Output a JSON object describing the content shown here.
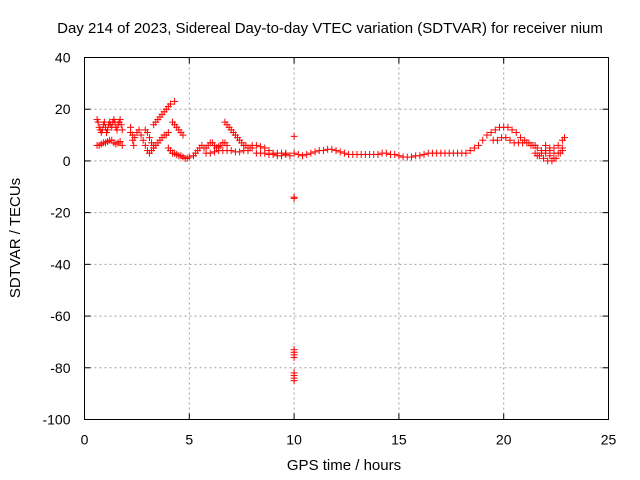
{
  "chart_data": {
    "type": "scatter",
    "title": "Day 214 of 2023, Sidereal Day-to-day VTEC variation (SDTVAR) for receiver nium",
    "xlabel": "GPS time / hours",
    "ylabel": "SDTVAR / TECUs",
    "xlim": [
      0,
      25
    ],
    "ylim": [
      -100,
      40
    ],
    "xticks": [
      0,
      5,
      10,
      15,
      20,
      25
    ],
    "yticks": [
      40,
      20,
      0,
      -20,
      -40,
      -60,
      -80,
      -100
    ],
    "xtick_labels": [
      "0",
      "5",
      "10",
      "15",
      "20",
      "25"
    ],
    "ytick_labels": [
      "40",
      "20",
      "0",
      "-20",
      "-40",
      "-60",
      "-80",
      "-100"
    ],
    "grid": true,
    "marker": "+",
    "marker_color": "#ff0000",
    "series": [
      {
        "name": "SDTVAR",
        "points": [
          [
            0.6,
            16
          ],
          [
            0.65,
            15
          ],
          [
            0.7,
            13
          ],
          [
            0.75,
            12
          ],
          [
            0.8,
            11
          ],
          [
            0.85,
            12
          ],
          [
            0.9,
            14
          ],
          [
            0.95,
            15
          ],
          [
            1.0,
            13
          ],
          [
            1.05,
            11
          ],
          [
            1.1,
            12
          ],
          [
            1.15,
            14
          ],
          [
            1.2,
            15
          ],
          [
            1.25,
            14
          ],
          [
            1.3,
            13
          ],
          [
            1.35,
            15
          ],
          [
            1.4,
            16
          ],
          [
            1.45,
            15
          ],
          [
            1.5,
            13
          ],
          [
            1.55,
            12
          ],
          [
            1.6,
            14
          ],
          [
            1.65,
            15
          ],
          [
            1.7,
            16
          ],
          [
            1.75,
            14
          ],
          [
            1.8,
            12
          ],
          [
            0.6,
            6
          ],
          [
            0.7,
            6
          ],
          [
            0.8,
            6.5
          ],
          [
            0.9,
            7
          ],
          [
            1.0,
            7
          ],
          [
            1.1,
            7.5
          ],
          [
            1.2,
            8
          ],
          [
            1.3,
            8
          ],
          [
            1.4,
            7
          ],
          [
            1.5,
            6.5
          ],
          [
            1.6,
            7
          ],
          [
            1.7,
            7.5
          ],
          [
            1.8,
            6
          ],
          [
            2.2,
            13
          ],
          [
            2.2,
            11
          ],
          [
            2.3,
            10
          ],
          [
            2.3,
            8
          ],
          [
            2.35,
            6
          ],
          [
            2.4,
            9
          ],
          [
            2.5,
            11
          ],
          [
            2.6,
            12
          ],
          [
            2.7,
            10
          ],
          [
            2.8,
            8
          ],
          [
            2.9,
            6
          ],
          [
            3.0,
            4
          ],
          [
            3.1,
            3
          ],
          [
            3.2,
            4
          ],
          [
            3.3,
            5
          ],
          [
            3.4,
            6
          ],
          [
            3.5,
            7
          ],
          [
            3.6,
            8
          ],
          [
            3.7,
            9
          ],
          [
            3.8,
            10
          ],
          [
            3.9,
            10
          ],
          [
            4.0,
            11
          ],
          [
            2.9,
            12
          ],
          [
            3.0,
            11
          ],
          [
            3.1,
            9
          ],
          [
            3.2,
            7
          ],
          [
            3.3,
            6
          ],
          [
            3.3,
            14
          ],
          [
            3.4,
            15
          ],
          [
            3.5,
            16
          ],
          [
            3.6,
            17
          ],
          [
            3.7,
            18
          ],
          [
            3.8,
            19
          ],
          [
            3.9,
            20
          ],
          [
            4.0,
            21
          ],
          [
            4.1,
            22
          ],
          [
            4.3,
            23
          ],
          [
            4.2,
            15
          ],
          [
            4.3,
            14
          ],
          [
            4.4,
            13
          ],
          [
            4.5,
            12
          ],
          [
            4.6,
            11
          ],
          [
            4.7,
            10
          ],
          [
            4.0,
            5
          ],
          [
            4.1,
            4
          ],
          [
            4.2,
            3
          ],
          [
            4.3,
            3
          ],
          [
            4.4,
            2.5
          ],
          [
            4.5,
            2
          ],
          [
            4.6,
            2
          ],
          [
            4.7,
            1.5
          ],
          [
            4.8,
            1
          ],
          [
            4.9,
            1
          ],
          [
            5.0,
            1.5
          ],
          [
            5.2,
            2
          ],
          [
            5.3,
            3
          ],
          [
            5.4,
            4
          ],
          [
            5.5,
            5
          ],
          [
            5.6,
            6
          ],
          [
            5.7,
            5
          ],
          [
            5.8,
            5
          ],
          [
            5.9,
            6
          ],
          [
            6.0,
            7
          ],
          [
            6.1,
            7
          ],
          [
            6.2,
            6
          ],
          [
            6.3,
            5
          ],
          [
            6.4,
            5.5
          ],
          [
            6.5,
            6
          ],
          [
            6.6,
            7
          ],
          [
            6.7,
            7
          ],
          [
            6.8,
            6
          ],
          [
            5.8,
            3
          ],
          [
            6.0,
            3
          ],
          [
            6.2,
            3.5
          ],
          [
            6.4,
            4
          ],
          [
            6.6,
            4
          ],
          [
            6.8,
            4
          ],
          [
            7.0,
            4
          ],
          [
            7.2,
            3.5
          ],
          [
            7.4,
            3.5
          ],
          [
            7.6,
            4
          ],
          [
            7.8,
            4
          ],
          [
            6.7,
            15
          ],
          [
            6.8,
            14
          ],
          [
            6.9,
            13
          ],
          [
            7.0,
            12
          ],
          [
            7.1,
            11
          ],
          [
            7.2,
            10
          ],
          [
            7.3,
            9
          ],
          [
            7.4,
            8
          ],
          [
            7.5,
            7
          ],
          [
            7.6,
            6
          ],
          [
            7.7,
            6
          ],
          [
            7.8,
            5
          ],
          [
            7.9,
            5
          ],
          [
            8.0,
            5
          ],
          [
            8.0,
            6
          ],
          [
            8.2,
            6
          ],
          [
            8.4,
            5.5
          ],
          [
            8.6,
            5
          ],
          [
            8.8,
            4
          ],
          [
            9.0,
            3
          ],
          [
            9.2,
            2
          ],
          [
            9.4,
            2
          ],
          [
            9.6,
            2.5
          ],
          [
            9.8,
            2
          ],
          [
            10.0,
            3
          ],
          [
            8.2,
            3
          ],
          [
            8.4,
            3
          ],
          [
            8.6,
            3
          ],
          [
            8.8,
            2.5
          ],
          [
            9.0,
            2.5
          ],
          [
            9.2,
            3
          ],
          [
            9.4,
            3
          ],
          [
            9.6,
            3
          ],
          [
            10.0,
            9.5
          ],
          [
            10.0,
            -14
          ],
          [
            10.0,
            -14.5
          ],
          [
            10.0,
            -73
          ],
          [
            10.0,
            -74
          ],
          [
            10.0,
            -75
          ],
          [
            10.0,
            -76
          ],
          [
            10.0,
            -82
          ],
          [
            10.0,
            -83
          ],
          [
            10.0,
            -84
          ],
          [
            10.0,
            -85
          ],
          [
            10.2,
            2.5
          ],
          [
            10.4,
            2
          ],
          [
            10.6,
            2.5
          ],
          [
            10.8,
            3
          ],
          [
            11.0,
            3.5
          ],
          [
            11.2,
            4
          ],
          [
            11.4,
            4
          ],
          [
            11.6,
            4.5
          ],
          [
            11.8,
            4.5
          ],
          [
            12.0,
            4
          ],
          [
            12.2,
            3.5
          ],
          [
            12.4,
            3
          ],
          [
            12.6,
            2.5
          ],
          [
            12.8,
            2.5
          ],
          [
            13.0,
            2.5
          ],
          [
            13.2,
            2.5
          ],
          [
            13.4,
            2.5
          ],
          [
            13.6,
            2.5
          ],
          [
            13.8,
            2.5
          ],
          [
            14.0,
            2.5
          ],
          [
            14.2,
            3
          ],
          [
            14.4,
            3
          ],
          [
            14.6,
            2.5
          ],
          [
            14.8,
            2.5
          ],
          [
            15.0,
            2
          ],
          [
            15.2,
            1.5
          ],
          [
            15.4,
            1.5
          ],
          [
            15.6,
            1.5
          ],
          [
            15.8,
            2
          ],
          [
            16.0,
            2
          ],
          [
            16.2,
            2.5
          ],
          [
            16.4,
            3
          ],
          [
            16.6,
            3
          ],
          [
            16.8,
            3
          ],
          [
            17.0,
            3
          ],
          [
            17.2,
            3
          ],
          [
            17.4,
            3
          ],
          [
            17.6,
            3
          ],
          [
            17.8,
            3
          ],
          [
            18.0,
            3
          ],
          [
            18.2,
            3
          ],
          [
            18.4,
            4
          ],
          [
            18.6,
            5
          ],
          [
            18.8,
            6
          ],
          [
            19.0,
            8
          ],
          [
            19.2,
            10
          ],
          [
            19.4,
            11
          ],
          [
            19.6,
            12
          ],
          [
            19.8,
            13
          ],
          [
            20.0,
            13
          ],
          [
            20.2,
            13
          ],
          [
            20.4,
            12
          ],
          [
            20.6,
            11
          ],
          [
            20.8,
            9
          ],
          [
            21.0,
            8
          ],
          [
            21.2,
            7
          ],
          [
            21.4,
            6
          ],
          [
            21.6,
            5
          ],
          [
            21.8,
            4
          ],
          [
            22.0,
            3
          ],
          [
            22.2,
            2
          ],
          [
            22.4,
            1
          ],
          [
            19.5,
            8
          ],
          [
            19.7,
            8
          ],
          [
            19.9,
            9
          ],
          [
            20.1,
            9
          ],
          [
            20.3,
            8
          ],
          [
            20.5,
            7
          ],
          [
            20.7,
            7
          ],
          [
            20.9,
            7
          ],
          [
            21.1,
            7
          ],
          [
            21.3,
            6
          ],
          [
            21.5,
            6
          ],
          [
            21.5,
            3
          ],
          [
            21.7,
            2
          ],
          [
            21.9,
            1
          ],
          [
            22.1,
            0
          ],
          [
            22.3,
            0
          ],
          [
            22.5,
            1
          ],
          [
            22.7,
            3
          ],
          [
            22.8,
            4
          ],
          [
            22.0,
            6
          ],
          [
            22.2,
            5
          ],
          [
            22.4,
            5
          ],
          [
            22.6,
            6
          ],
          [
            22.8,
            8
          ],
          [
            22.9,
            9
          ],
          [
            21.6,
            2
          ],
          [
            21.8,
            3
          ],
          [
            22.0,
            4
          ],
          [
            22.2,
            4
          ],
          [
            22.4,
            3
          ],
          [
            22.6,
            3
          ],
          [
            22.8,
            5
          ]
        ]
      }
    ]
  }
}
